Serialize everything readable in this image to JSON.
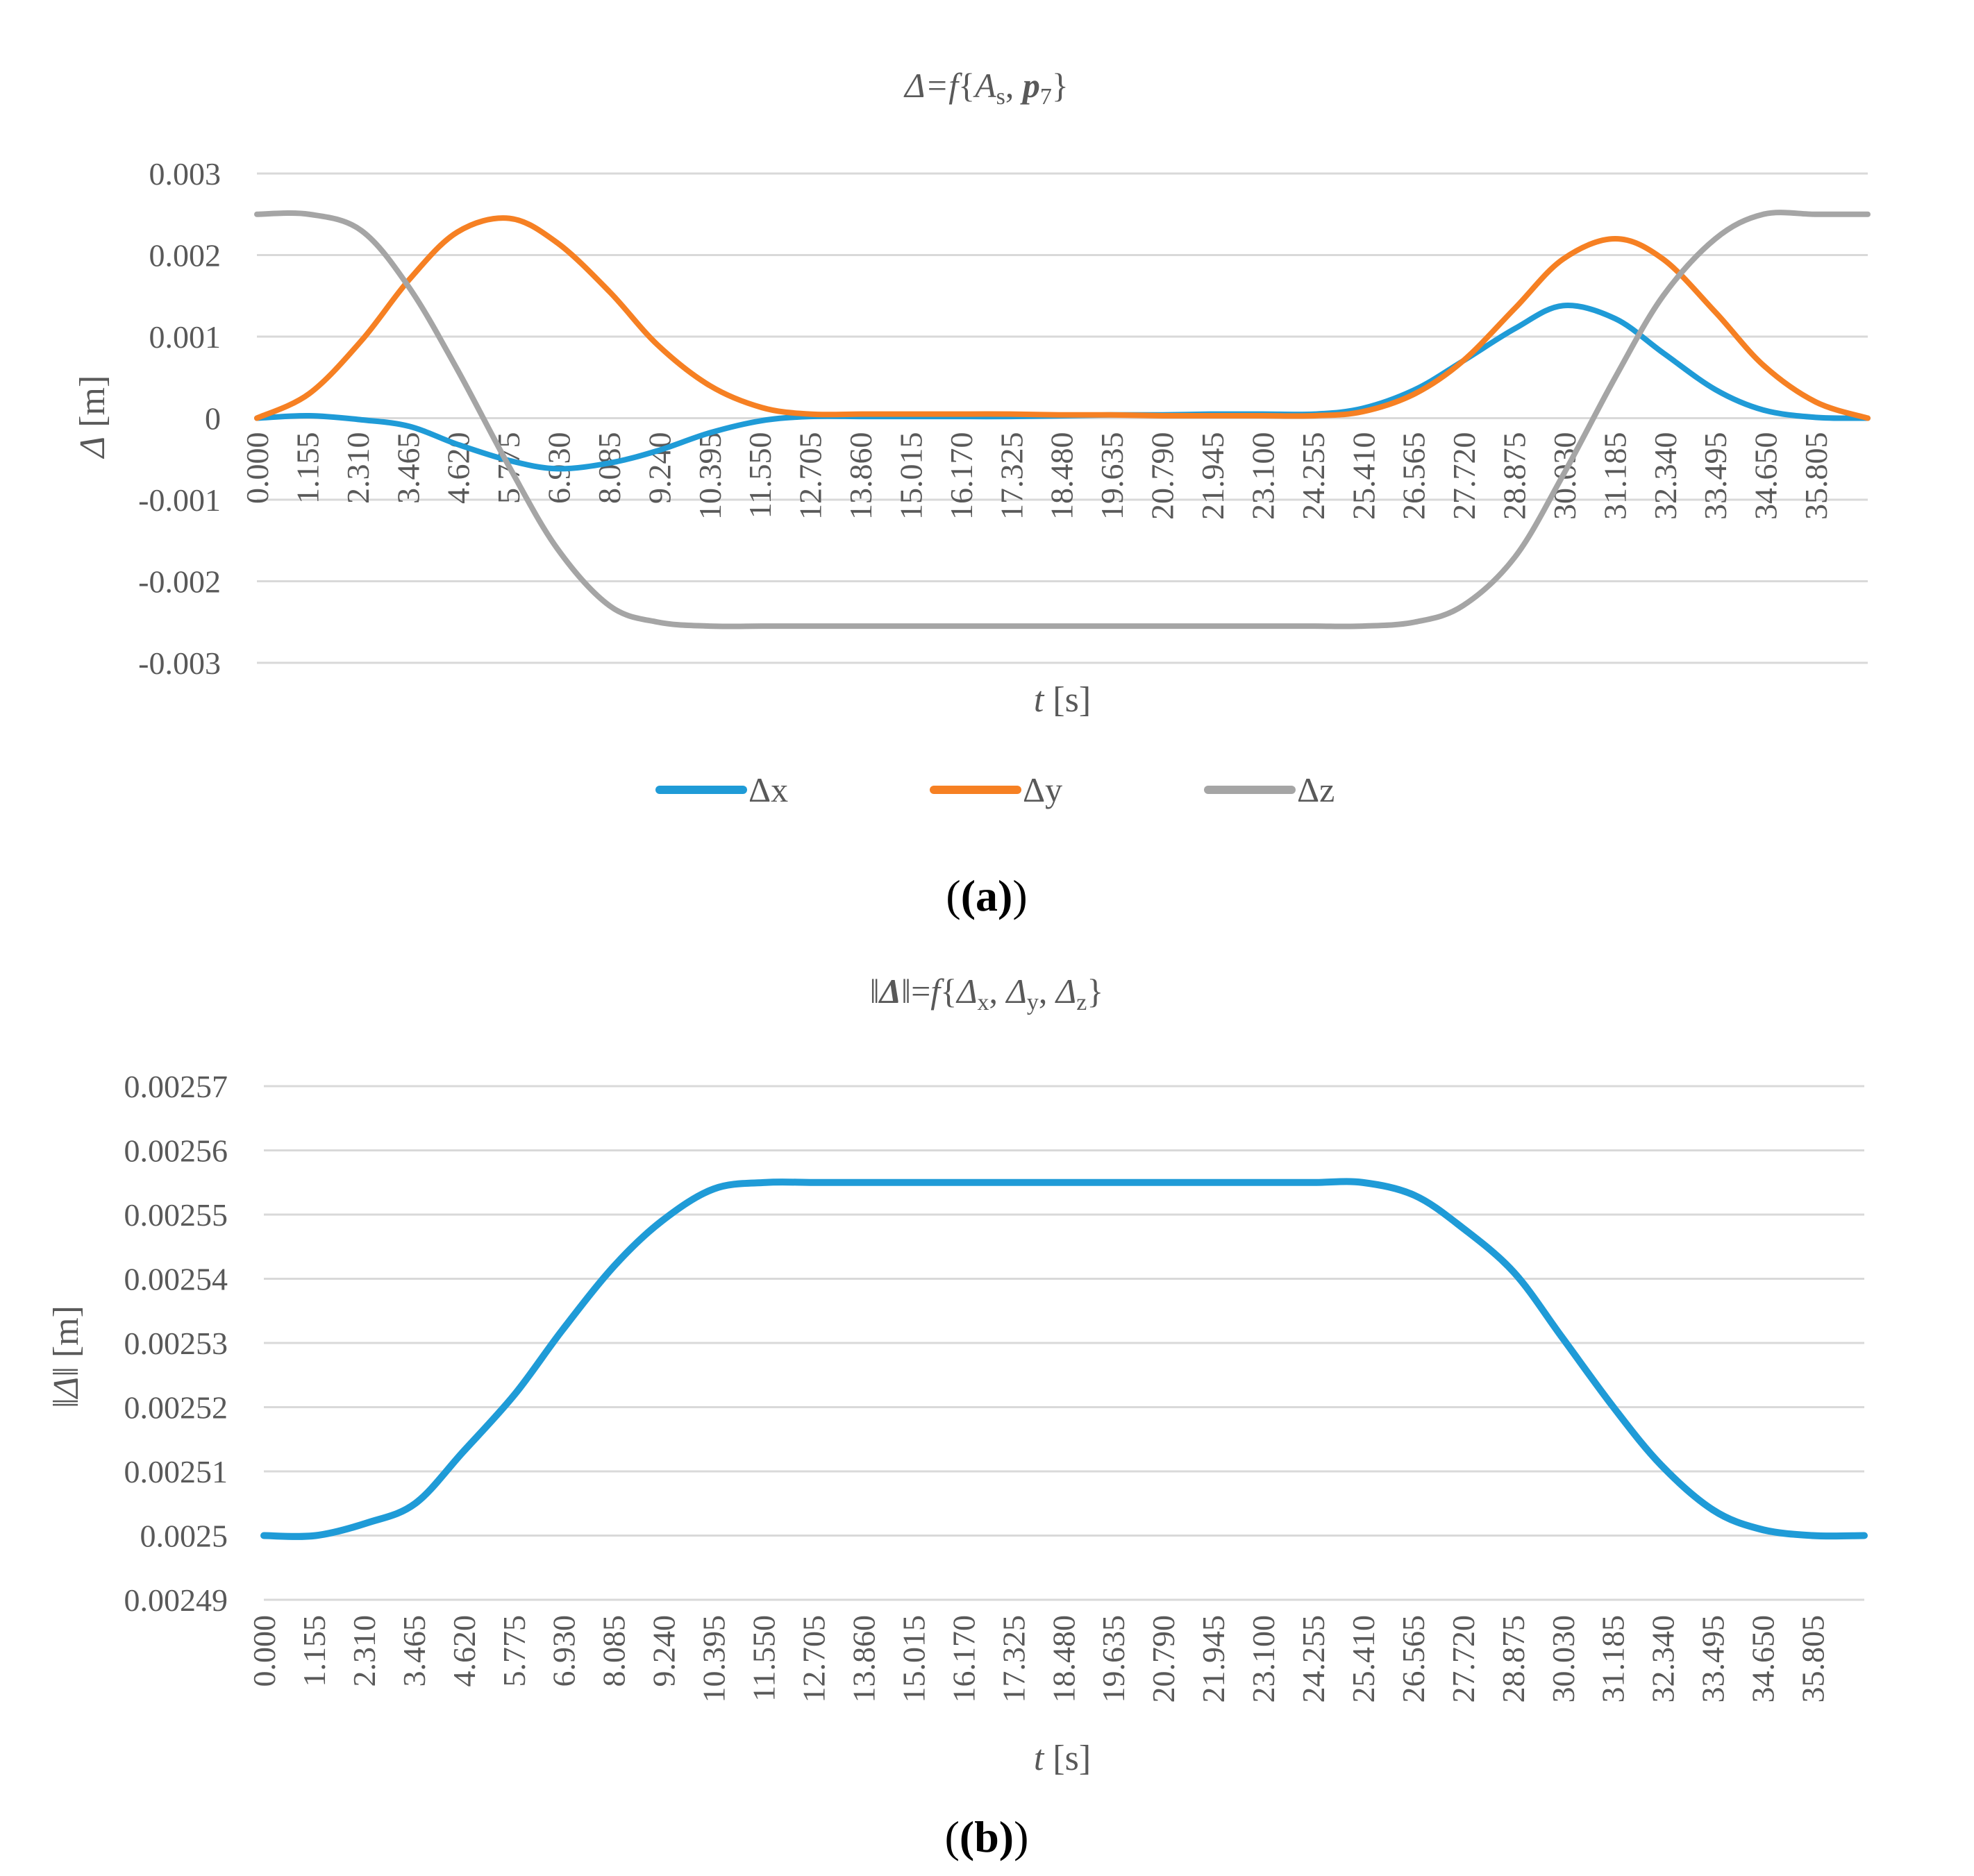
{
  "chart_data": [
    {
      "id": "a",
      "type": "line",
      "title": {
        "pre": "Δ=",
        "f": "f",
        "mid": "{",
        "A": "A",
        "sub_s": "s",
        "sep": ", ",
        "p": "p",
        "sub_7": "7",
        "end": "}"
      },
      "xlabel": {
        "var": "t",
        "unit": " [s]"
      },
      "ylabel": {
        "var": "Δ",
        "unit": " [m]"
      },
      "xlim": [
        0,
        37.0
      ],
      "ylim": [
        -0.003,
        0.003
      ],
      "yticks": [
        "0.003",
        "0.002",
        "0.001",
        "0",
        "-0.001",
        "-0.002",
        "-0.003"
      ],
      "ytick_values": [
        0.003,
        0.002,
        0.001,
        0,
        -0.001,
        -0.002,
        -0.003
      ],
      "xticks": [
        "0.000",
        "1.155",
        "2.310",
        "3.465",
        "4.620",
        "5.775",
        "6.930",
        "8.085",
        "9.240",
        "10.395",
        "11.550",
        "12.705",
        "13.860",
        "15.015",
        "16.170",
        "17.325",
        "18.480",
        "19.635",
        "20.790",
        "21.945",
        "23.100",
        "24.255",
        "25.410",
        "26.565",
        "27.720",
        "28.875",
        "30.030",
        "31.185",
        "32.340",
        "33.495",
        "34.650",
        "35.805"
      ],
      "series": [
        {
          "name": "Δx",
          "color": "#1f9bd7",
          "x": [
            0,
            1.2,
            2.4,
            3.5,
            4.6,
            5.8,
            6.9,
            8.1,
            9.2,
            10.4,
            11.6,
            12.7,
            13.9,
            15.0,
            16.2,
            17.3,
            18.5,
            19.6,
            20.8,
            21.9,
            23.1,
            24.3,
            25.4,
            26.6,
            27.7,
            28.9,
            30.0,
            31.2,
            32.3,
            33.5,
            34.6,
            35.8,
            37.0
          ],
          "y": [
            0,
            3e-05,
            -2e-05,
            -0.0001,
            -0.00032,
            -0.00052,
            -0.00062,
            -0.00055,
            -0.0004,
            -0.00018,
            -3e-05,
            2e-05,
            2e-05,
            2e-05,
            2e-05,
            2e-05,
            3e-05,
            4e-05,
            4e-05,
            5e-05,
            5e-05,
            5e-05,
            0.00012,
            0.00035,
            0.0007,
            0.0011,
            0.00138,
            0.00122,
            0.0008,
            0.00035,
            0.0001,
            1e-05,
            0
          ]
        },
        {
          "name": "Δy",
          "color": "#f68023",
          "x": [
            0,
            1.2,
            2.4,
            3.5,
            4.6,
            5.8,
            6.9,
            8.1,
            9.2,
            10.4,
            11.6,
            12.7,
            13.9,
            15.0,
            16.2,
            17.3,
            18.5,
            19.6,
            20.8,
            21.9,
            23.1,
            24.3,
            25.4,
            26.6,
            27.7,
            28.9,
            30.0,
            31.2,
            32.3,
            33.5,
            34.6,
            35.8,
            37.0
          ],
          "y": [
            0,
            0.0003,
            0.00095,
            0.0017,
            0.00228,
            0.00245,
            0.00215,
            0.00155,
            0.0009,
            0.0004,
            0.00013,
            5e-05,
            5e-05,
            5e-05,
            5e-05,
            5e-05,
            4e-05,
            4e-05,
            3e-05,
            3e-05,
            3e-05,
            3e-05,
            8e-05,
            0.0003,
            0.0007,
            0.00135,
            0.00195,
            0.0022,
            0.00195,
            0.0013,
            0.00065,
            0.0002,
            0
          ]
        },
        {
          "name": "Δz",
          "color": "#a5a5a5",
          "x": [
            0,
            1.2,
            2.4,
            3.5,
            4.6,
            5.8,
            6.9,
            8.1,
            9.2,
            10.4,
            11.6,
            12.7,
            13.9,
            15.0,
            16.2,
            17.3,
            18.5,
            19.6,
            20.8,
            21.9,
            23.1,
            24.3,
            25.4,
            26.6,
            27.7,
            28.9,
            30.0,
            31.2,
            32.3,
            33.5,
            34.6,
            35.8,
            37.0
          ],
          "y": [
            0.0025,
            0.0025,
            0.0023,
            0.0016,
            0.0006,
            -0.0006,
            -0.0016,
            -0.0023,
            -0.0025,
            -0.00255,
            -0.00255,
            -0.00255,
            -0.00255,
            -0.00255,
            -0.00255,
            -0.00255,
            -0.00255,
            -0.00255,
            -0.00255,
            -0.00255,
            -0.00255,
            -0.00255,
            -0.00255,
            -0.0025,
            -0.0023,
            -0.0017,
            -0.0007,
            0.0005,
            0.0015,
            0.0022,
            0.0025,
            0.0025,
            0.0025
          ]
        }
      ],
      "panel_label": "(a)"
    },
    {
      "id": "b",
      "type": "line",
      "title": {
        "bars_l": "‖",
        "D": "Δ",
        "bars_r": "‖=",
        "f": "f",
        "open": "{",
        "d1": "Δ",
        "s1": "x",
        "c1": ", ",
        "d2": "Δ",
        "s2": "y",
        "c2": ", ",
        "d3": "Δ",
        "s3": "z",
        "close": "}"
      },
      "xlabel": {
        "var": "t",
        "unit": " [s]"
      },
      "ylabel": {
        "bars_l": "‖",
        "var": "Δ",
        "bars_r": "‖",
        "unit": " [m]"
      },
      "xlim": [
        0,
        37.0
      ],
      "ylim": [
        0.00249,
        0.00257
      ],
      "yticks": [
        "0.00257",
        "0.00256",
        "0.00255",
        "0.00254",
        "0.00253",
        "0.00252",
        "0.00251",
        "0.0025",
        "0.00249"
      ],
      "ytick_values": [
        0.00257,
        0.00256,
        0.00255,
        0.00254,
        0.00253,
        0.00252,
        0.00251,
        0.0025,
        0.00249
      ],
      "xticks": [
        "0.000",
        "1.155",
        "2.310",
        "3.465",
        "4.620",
        "5.775",
        "6.930",
        "8.085",
        "9.240",
        "10.395",
        "11.550",
        "12.705",
        "13.860",
        "15.015",
        "16.170",
        "17.325",
        "18.480",
        "19.635",
        "20.790",
        "21.945",
        "23.100",
        "24.255",
        "25.410",
        "26.565",
        "27.720",
        "28.875",
        "30.030",
        "31.185",
        "32.340",
        "33.495",
        "34.650",
        "35.805"
      ],
      "series": [
        {
          "name": "‖Δ‖",
          "color": "#1f9bd7",
          "x": [
            0,
            1.2,
            2.4,
            3.5,
            4.6,
            5.8,
            6.9,
            8.1,
            9.2,
            10.4,
            11.6,
            12.7,
            13.9,
            15.0,
            16.2,
            17.3,
            18.5,
            19.6,
            20.8,
            21.9,
            23.1,
            24.3,
            25.4,
            26.6,
            27.7,
            28.9,
            30.0,
            31.2,
            32.3,
            33.5,
            34.6,
            35.8,
            37.0
          ],
          "y": [
            0.0025,
            0.0025,
            0.002502,
            0.002505,
            0.002513,
            0.002522,
            0.002532,
            0.002542,
            0.002549,
            0.002554,
            0.002555,
            0.002555,
            0.002555,
            0.002555,
            0.002555,
            0.002555,
            0.002555,
            0.002555,
            0.002555,
            0.002555,
            0.002555,
            0.002555,
            0.002555,
            0.002553,
            0.002548,
            0.002541,
            0.002531,
            0.00252,
            0.002511,
            0.002504,
            0.002501,
            0.0025,
            0.0025
          ]
        }
      ],
      "panel_label": "(b)"
    }
  ]
}
